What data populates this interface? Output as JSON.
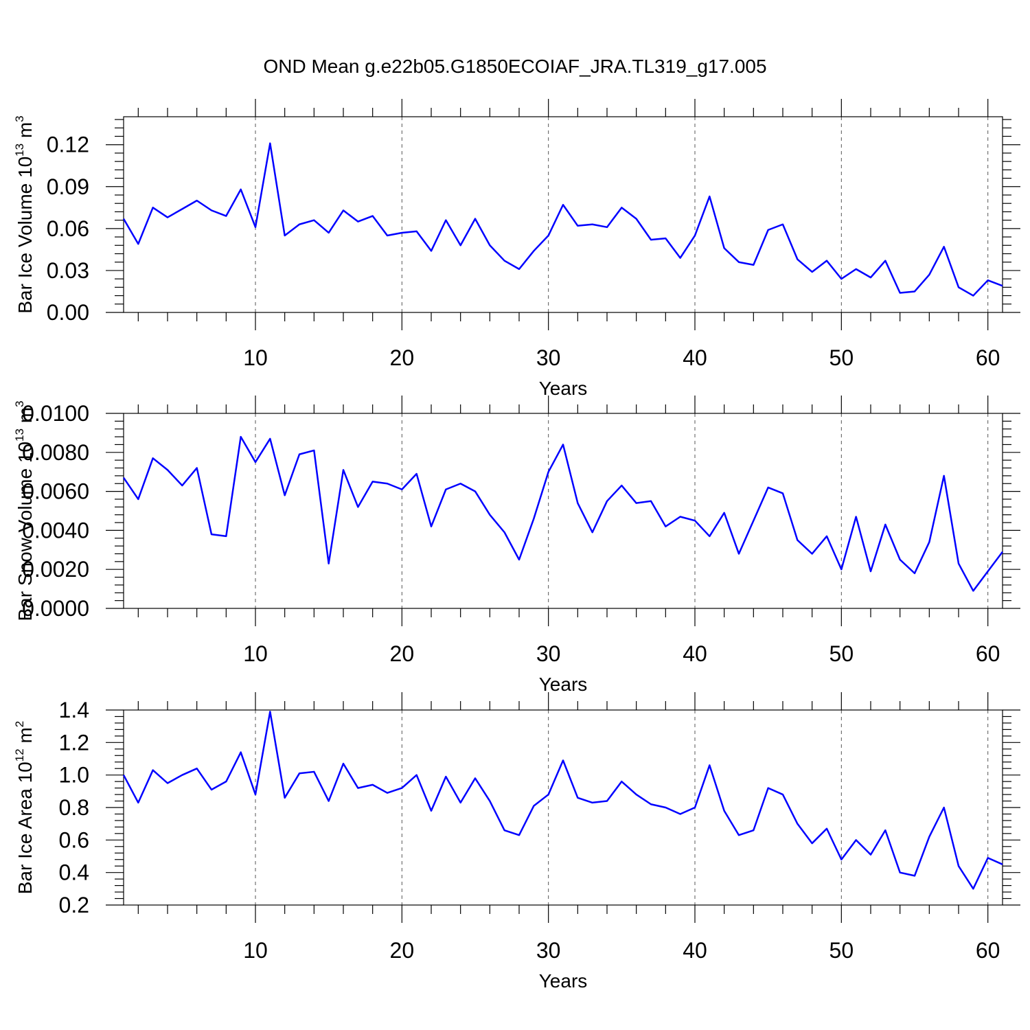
{
  "title": "OND Mean g.e22b05.G1850ECOIAF_JRA.TL319_g17.005",
  "line_color": "#0000ff",
  "chart_data": [
    {
      "type": "line",
      "ylabel": {
        "main": "Bar Ice Volume 10",
        "exp": "13",
        "unit": " m",
        "unit_exp": "3"
      },
      "xlabel": "Years",
      "xlim": [
        1,
        61
      ],
      "ylim": [
        0,
        0.14
      ],
      "xticks": [
        10,
        20,
        30,
        40,
        50,
        60
      ],
      "yticks": [
        0,
        0.03,
        0.06,
        0.09,
        0.12
      ],
      "ytick_labels": [
        "0.00",
        "0.03",
        "0.06",
        "0.09",
        "0.12"
      ],
      "xgrid": true,
      "series": [
        {
          "values": [
            0.067,
            0.049,
            0.075,
            0.068,
            0.074,
            0.08,
            0.073,
            0.069,
            0.088,
            0.061,
            0.121,
            0.055,
            0.063,
            0.066,
            0.057,
            0.073,
            0.065,
            0.069,
            0.055,
            0.057,
            0.058,
            0.044,
            0.066,
            0.048,
            0.067,
            0.048,
            0.037,
            0.031,
            0.044,
            0.055,
            0.077,
            0.062,
            0.063,
            0.061,
            0.075,
            0.067,
            0.052,
            0.053,
            0.039,
            0.055,
            0.083,
            0.046,
            0.036,
            0.034,
            0.059,
            0.063,
            0.038,
            0.029,
            0.037,
            0.024,
            0.031,
            0.025,
            0.037,
            0.014,
            0.015,
            0.027,
            0.047,
            0.018,
            0.012,
            0.023,
            0.019
          ]
        }
      ]
    },
    {
      "type": "line",
      "ylabel": {
        "main": "Bar Snow Volume 10",
        "exp": "13",
        "unit": " m",
        "unit_exp": "3"
      },
      "xlabel": "Years",
      "xlim": [
        1,
        61
      ],
      "ylim": [
        0,
        0.01
      ],
      "xticks": [
        10,
        20,
        30,
        40,
        50,
        60
      ],
      "yticks": [
        0,
        0.002,
        0.004,
        0.006,
        0.008,
        0.01
      ],
      "ytick_labels": [
        "0.0000",
        "0.0020",
        "0.0040",
        "0.0060",
        "0.0080",
        "0.0100"
      ],
      "xgrid": true,
      "series": [
        {
          "values": [
            0.0067,
            0.0056,
            0.0077,
            0.0071,
            0.0063,
            0.0072,
            0.0038,
            0.0037,
            0.0088,
            0.0075,
            0.0087,
            0.0058,
            0.0079,
            0.0081,
            0.0023,
            0.0071,
            0.0052,
            0.0065,
            0.0064,
            0.0061,
            0.0069,
            0.0042,
            0.0061,
            0.0064,
            0.006,
            0.0048,
            0.0039,
            0.0025,
            0.0046,
            0.007,
            0.0084,
            0.0054,
            0.0039,
            0.0055,
            0.0063,
            0.0054,
            0.0055,
            0.0042,
            0.0047,
            0.0045,
            0.0037,
            0.0049,
            0.0028,
            0.0045,
            0.0062,
            0.0059,
            0.0035,
            0.0028,
            0.0037,
            0.002,
            0.0047,
            0.0019,
            0.0043,
            0.0025,
            0.0018,
            0.0034,
            0.0068,
            0.0023,
            0.0009,
            0.0019,
            0.0029
          ]
        }
      ]
    },
    {
      "type": "line",
      "ylabel": {
        "main": "Bar Ice Area 10",
        "exp": "12",
        "unit": " m",
        "unit_exp": "2"
      },
      "xlabel": "Years",
      "xlim": [
        1,
        61
      ],
      "ylim": [
        0.2,
        1.4
      ],
      "xticks": [
        10,
        20,
        30,
        40,
        50,
        60
      ],
      "yticks": [
        0.2,
        0.4,
        0.6,
        0.8,
        1.0,
        1.2,
        1.4
      ],
      "ytick_labels": [
        "0.2",
        "0.4",
        "0.6",
        "0.8",
        "1.0",
        "1.2",
        "1.4"
      ],
      "xgrid": true,
      "series": [
        {
          "values": [
            1.0,
            0.83,
            1.03,
            0.95,
            1.0,
            1.04,
            0.91,
            0.96,
            1.14,
            0.88,
            1.39,
            0.86,
            1.01,
            1.02,
            0.84,
            1.07,
            0.92,
            0.94,
            0.89,
            0.92,
            1.0,
            0.78,
            0.99,
            0.83,
            0.98,
            0.84,
            0.66,
            0.63,
            0.81,
            0.88,
            1.09,
            0.86,
            0.83,
            0.84,
            0.96,
            0.88,
            0.82,
            0.8,
            0.76,
            0.8,
            1.06,
            0.78,
            0.63,
            0.66,
            0.92,
            0.88,
            0.7,
            0.58,
            0.67,
            0.48,
            0.6,
            0.51,
            0.66,
            0.4,
            0.38,
            0.62,
            0.8,
            0.44,
            0.3,
            0.49,
            0.45
          ]
        }
      ]
    }
  ]
}
